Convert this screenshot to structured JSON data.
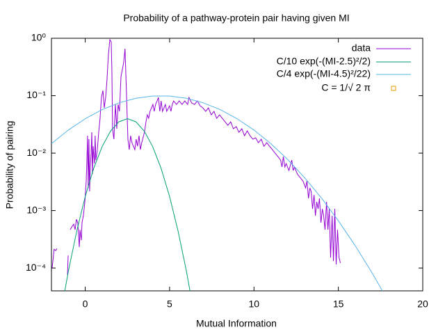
{
  "chart_data": {
    "type": "line",
    "log_y": true,
    "title": "Probability of a pathway-protein pair having given MI",
    "x_label": "Mutual Information",
    "y_label": "Probability of pairing",
    "xlim": [
      -2,
      20
    ],
    "xticks": [
      0,
      5,
      10,
      15,
      20
    ],
    "ylim": [
      4e-05,
      1
    ],
    "yticks": [
      {
        "value": 1,
        "label": "10⁰"
      },
      {
        "value": 0.1,
        "label": "10⁻¹"
      },
      {
        "value": 0.01,
        "label": "10⁻²"
      },
      {
        "value": 0.001,
        "label": "10⁻³"
      },
      {
        "value": 0.0001,
        "label": "10⁻⁴"
      }
    ],
    "legend": "top-right",
    "series": [
      {
        "name": "data",
        "color": "#9400d3",
        "x": [
          -1.96,
          -1.84,
          -1.75,
          -1.67,
          -1.3,
          -1.05,
          -1.01,
          -0.95,
          -0.89,
          -0.77,
          -0.68,
          -0.6,
          -0.52,
          -0.44,
          -0.35,
          -0.31,
          -0.23,
          -0.19,
          -0.11,
          -0.02,
          0.06,
          0.1,
          0.14,
          0.18,
          0.22,
          0.26,
          0.3,
          0.35,
          0.39,
          0.43,
          0.47,
          0.55,
          0.59,
          0.63,
          0.72,
          0.8,
          0.88,
          0.96,
          1.05,
          1.13,
          1.21,
          1.29,
          1.37,
          1.46,
          1.54,
          1.58,
          1.62,
          1.7,
          1.79,
          1.87,
          1.95,
          2.03,
          2.12,
          2.2,
          2.28,
          2.36,
          2.44,
          2.53,
          2.61,
          2.69,
          2.77,
          2.94,
          3.02,
          3.1,
          3.19,
          3.27,
          3.35,
          3.51,
          3.6,
          3.68,
          3.76,
          3.84,
          3.93,
          4.01,
          4.09,
          4.17,
          4.26,
          4.34,
          4.42,
          4.5,
          4.58,
          4.75,
          4.83,
          5.0,
          5.08,
          5.16,
          5.24,
          5.41,
          5.57,
          5.74,
          5.9,
          6.07,
          6.15,
          6.31,
          6.48,
          6.64,
          6.81,
          6.97,
          7.14,
          7.3,
          7.47,
          7.63,
          7.79,
          7.96,
          8.12,
          8.29,
          8.45,
          8.62,
          8.78,
          8.95,
          9.11,
          9.28,
          9.44,
          9.6,
          9.77,
          9.93,
          10.1,
          10.26,
          10.43,
          10.59,
          10.76,
          10.92,
          11.09,
          11.25,
          11.42,
          11.58,
          11.66,
          11.74,
          11.83,
          11.91,
          12.07,
          12.24,
          12.32,
          12.4,
          12.57,
          12.73,
          12.9,
          13.06,
          13.14,
          13.23,
          13.31,
          13.39,
          13.47,
          13.56,
          13.64,
          13.72,
          13.8,
          13.88,
          13.97,
          14.05,
          14.13,
          14.21,
          14.3,
          14.38,
          14.46,
          14.54,
          14.63,
          14.71,
          14.79,
          14.87,
          14.95,
          15.04,
          15.12
        ],
        "values": [
          0.0001,
          0.000212,
          0.000201,
          0.000218,
          null,
          7.56e-05,
          0.000165,
          null,
          0.000464,
          0.000534,
          0.00058,
          0.000464,
          0.000705,
          0.000614,
          0.000231,
          0.000464,
          0.000305,
          0.000614,
          0.000811,
          0.00142,
          0.00328,
          0.00756,
          0.0201,
          0.00248,
          0.0175,
          0.00216,
          0.00573,
          0.01,
          0.0231,
          0.00433,
          0.0132,
          0.00658,
          0.0201,
          0.00756,
          0.0115,
          0.0231,
          0.0404,
          0.0933,
          0.123,
          0.0614,
          0.0933,
          0.187,
          0.498,
          0.946,
          0.869,
          0.285,
          0.0266,
          0.0175,
          0.0705,
          0.0266,
          0.0705,
          0.0534,
          0.216,
          0.285,
          0.377,
          0.658,
          0.123,
          0.0175,
          0.0115,
          0.0201,
          0.0152,
          0.0115,
          0.0175,
          0.0132,
          0.0201,
          0.0115,
          0.0152,
          0.0231,
          0.0351,
          0.0464,
          0.0404,
          0.0534,
          0.0614,
          0.0705,
          0.0534,
          0.0705,
          0.0811,
          0.0933,
          0.0534,
          0.0811,
          0.0534,
          0.0705,
          0.0534,
          0.0667,
          0.0534,
          0.0705,
          0.0811,
          0.0705,
          0.0811,
          0.0705,
          0.0811,
          0.0705,
          0.0933,
          0.0746,
          0.0705,
          0.0811,
          0.0667,
          0.0614,
          0.0534,
          0.0614,
          0.0464,
          0.0534,
          0.0404,
          0.0464,
          0.0404,
          0.0351,
          0.0305,
          0.0351,
          0.0266,
          0.0289,
          0.0231,
          0.0266,
          0.0201,
          0.0244,
          0.0201,
          0.0175,
          0.0185,
          0.0152,
          0.0175,
          0.0132,
          0.0152,
          0.0132,
          0.0115,
          0.01,
          0.00869,
          0.00756,
          0.00573,
          0.00869,
          0.00573,
          0.00658,
          0.00498,
          0.00756,
          0.00498,
          0.00573,
          0.00433,
          0.00377,
          0.00328,
          0.00248,
          0.00328,
          0.00163,
          0.00248,
          0.00216,
          0.00107,
          0.00187,
          0.000811,
          0.00142,
          0.00107,
          0.00163,
          0.000614,
          0.00107,
          0.000811,
          0.000464,
          0.00142,
          0.000464,
          0.00107,
          0.000152,
          0.000811,
          0.000132,
          0.00107,
          0.000115,
          0.000464,
          0.000152,
          0.000122
        ]
      },
      {
        "name": "C/10 exp(-(MI-2.5)²/2)",
        "color": "#009e73",
        "x": [
          -1.5,
          -1,
          -0.5,
          0,
          0.5,
          1,
          1.5,
          2,
          2.5,
          3,
          3.5,
          4,
          4.5,
          5,
          5.5,
          6,
          6.5
        ],
        "values": [
          1.338e-05,
          8.72e-05,
          0.000443,
          0.001753,
          0.0054,
          0.01295,
          0.02419,
          0.0352,
          0.03989,
          0.0352,
          0.02419,
          0.01295,
          0.0054,
          0.001753,
          0.000443,
          8.72e-05,
          1.338e-05
        ]
      },
      {
        "name": "C/4 exp(-(MI-4.5)²/22)",
        "color": "#56b4e9",
        "x": [
          -2,
          -1,
          0,
          1,
          2,
          3,
          4,
          5,
          6,
          7,
          8,
          9,
          10,
          11,
          12,
          13,
          14,
          15,
          16,
          17,
          18
        ],
        "values": [
          0.01462,
          0.02522,
          0.03973,
          0.05715,
          0.07507,
          0.09005,
          0.09861,
          0.09861,
          0.09005,
          0.07507,
          0.05715,
          0.03973,
          0.02522,
          0.01462,
          0.007734,
          0.003737,
          0.00165,
          0.000664,
          0.0002444,
          8.21e-05,
          2.52e-05
        ]
      },
      {
        "name": "C = 1/√ 2 π",
        "color": "#e69f00",
        "marker": "square",
        "x": [],
        "values": []
      }
    ]
  }
}
